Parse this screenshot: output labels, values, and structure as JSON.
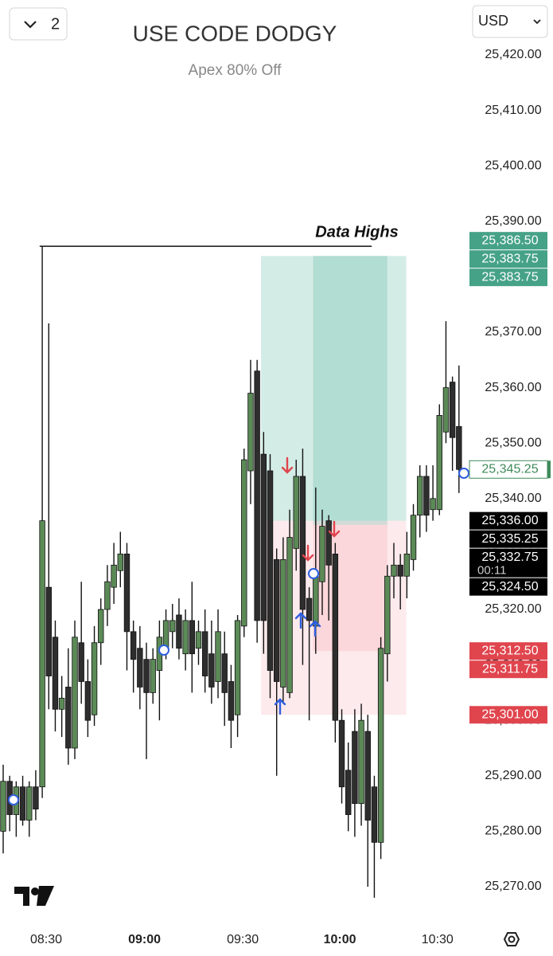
{
  "toolbar": {
    "interval_count": "2",
    "currency": "USD"
  },
  "chart_data": {
    "type": "candlestick",
    "title": "USE CODE DODGY",
    "subtitle": "Apex 80% Off",
    "up_color": "#5b8a57",
    "down_color": "#2e2e2e",
    "wick_color": "#111111",
    "ylim": [
      25265,
      25428
    ],
    "yticks": [
      {
        "value": 25270,
        "label": "25,270.00"
      },
      {
        "value": 25280,
        "label": "25,280.00"
      },
      {
        "value": 25290,
        "label": "25,290.00"
      },
      {
        "value": 25300,
        "label": "25,300.00"
      },
      {
        "value": 25310,
        "label": "25,310.00"
      },
      {
        "value": 25320,
        "label": "25,320.00"
      },
      {
        "value": 25330,
        "label": "25,330.00"
      },
      {
        "value": 25340,
        "label": "25,340.00"
      },
      {
        "value": 25350,
        "label": "25,350.00"
      },
      {
        "value": 25360,
        "label": "25,360.00"
      },
      {
        "value": 25370,
        "label": "25,370.00"
      },
      {
        "value": 25380,
        "label": "25,380.00"
      },
      {
        "value": 25390,
        "label": "25,390.00"
      },
      {
        "value": 25400,
        "label": "25,400.00"
      },
      {
        "value": 25410,
        "label": "25,410.00"
      },
      {
        "value": 25420,
        "label": "25,420.00"
      }
    ],
    "xlim": [
      -0.5,
      71.5
    ],
    "xticks": [
      {
        "value": 6.6,
        "label": "08:30"
      },
      {
        "value": 21.7,
        "label": "09:00",
        "bold": true
      },
      {
        "value": 36.8,
        "label": "09:30"
      },
      {
        "value": 51.7,
        "label": "10:00",
        "bold": true
      },
      {
        "value": 66.7,
        "label": "10:30"
      }
    ],
    "candles": [
      {
        "open": 25280,
        "high": 25292,
        "low": 25276,
        "close": 25289
      },
      {
        "open": 25289,
        "high": 25290,
        "low": 25280,
        "close": 25283
      },
      {
        "open": 25283,
        "high": 25289,
        "low": 25279,
        "close": 25288
      },
      {
        "open": 25288,
        "high": 25290,
        "low": 25281,
        "close": 25282
      },
      {
        "open": 25282,
        "high": 25289,
        "low": 25279,
        "close": 25288
      },
      {
        "open": 25288,
        "high": 25291,
        "low": 25282,
        "close": 25284
      },
      {
        "open": 25288,
        "high": 25385.5,
        "low": 25286,
        "close": 25336
      },
      {
        "open": 25324,
        "high": 25371.6,
        "low": 25302,
        "close": 25308
      },
      {
        "open": 25315,
        "high": 25318,
        "low": 25298,
        "close": 25302
      },
      {
        "open": 25302,
        "high": 25308,
        "low": 25297,
        "close": 25304
      },
      {
        "open": 25306,
        "high": 25313,
        "low": 25292,
        "close": 25295
      },
      {
        "open": 25295,
        "high": 25318,
        "low": 25293,
        "close": 25315
      },
      {
        "open": 25314,
        "high": 25325,
        "low": 25303,
        "close": 25307
      },
      {
        "open": 25307,
        "high": 25311,
        "low": 25297,
        "close": 25300
      },
      {
        "open": 25301,
        "high": 25317,
        "low": 25299,
        "close": 25314
      },
      {
        "open": 25314,
        "high": 25322,
        "low": 25310,
        "close": 25320
      },
      {
        "open": 25320,
        "high": 25328,
        "low": 25317,
        "close": 25325
      },
      {
        "open": 25324,
        "high": 25332,
        "low": 25321,
        "close": 25328
      },
      {
        "open": 25327,
        "high": 25334,
        "low": 25324,
        "close": 25330
      },
      {
        "open": 25330,
        "high": 25332,
        "low": 25309,
        "close": 25316
      },
      {
        "open": 25316,
        "high": 25318,
        "low": 25305,
        "close": 25311
      },
      {
        "open": 25313,
        "high": 25317,
        "low": 25302,
        "close": 25306
      },
      {
        "open": 25311,
        "high": 25314,
        "low": 25293,
        "close": 25305
      },
      {
        "open": 25305,
        "high": 25313,
        "low": 25303,
        "close": 25311
      },
      {
        "open": 25309,
        "high": 25318,
        "low": 25300,
        "close": 25315
      },
      {
        "open": 25313,
        "high": 25320,
        "low": 25311,
        "close": 25318
      },
      {
        "open": 25316,
        "high": 25321,
        "low": 25313,
        "close": 25318
      },
      {
        "open": 25319,
        "high": 25322,
        "low": 25311,
        "close": 25313
      },
      {
        "open": 25312,
        "high": 25320,
        "low": 25309,
        "close": 25318
      },
      {
        "open": 25318,
        "high": 25325,
        "low": 25305,
        "close": 25312
      },
      {
        "open": 25313,
        "high": 25318,
        "low": 25310,
        "close": 25316
      },
      {
        "open": 25316,
        "high": 25320,
        "low": 25305,
        "close": 25308
      },
      {
        "open": 25312,
        "high": 25318,
        "low": 25303,
        "close": 25306
      },
      {
        "open": 25307,
        "high": 25320,
        "low": 25304,
        "close": 25316
      },
      {
        "open": 25312,
        "high": 25316,
        "low": 25299,
        "close": 25305
      },
      {
        "open": 25307,
        "high": 25310,
        "low": 25295,
        "close": 25300
      },
      {
        "open": 25301,
        "high": 25319,
        "low": 25297,
        "close": 25318
      },
      {
        "open": 25317,
        "high": 25349,
        "low": 25315,
        "close": 25347
      },
      {
        "open": 25345,
        "high": 25365,
        "low": 25339,
        "close": 25359
      },
      {
        "open": 25363,
        "high": 25365,
        "low": 25314,
        "close": 25318
      },
      {
        "open": 25348,
        "high": 25352,
        "low": 25312,
        "close": 25318
      },
      {
        "open": 25345,
        "high": 25348,
        "low": 25304,
        "close": 25309
      },
      {
        "open": 25329,
        "high": 25331,
        "low": 25290,
        "close": 25307
      },
      {
        "open": 25306,
        "high": 25333,
        "low": 25303,
        "close": 25329
      },
      {
        "open": 25305,
        "high": 25338,
        "low": 25304,
        "close": 25333
      },
      {
        "open": 25331,
        "high": 25347,
        "low": 25327,
        "close": 25344
      },
      {
        "open": 25344,
        "high": 25349,
        "low": 25310,
        "close": 25320
      },
      {
        "open": 25322,
        "high": 25324,
        "low": 25300,
        "close": 25318
      },
      {
        "open": 25317,
        "high": 25342,
        "low": 25312,
        "close": 25326
      },
      {
        "open": 25325,
        "high": 25338,
        "low": 25319,
        "close": 25335
      },
      {
        "open": 25336,
        "high": 25337,
        "low": 25318,
        "close": 25328
      },
      {
        "open": 25330,
        "high": 25332,
        "low": 25296,
        "close": 25300
      },
      {
        "open": 25300,
        "high": 25302,
        "low": 25285,
        "close": 25288
      },
      {
        "open": 25291,
        "high": 25296,
        "low": 25280,
        "close": 25283
      },
      {
        "open": 25298,
        "high": 25302,
        "low": 25279,
        "close": 25285
      },
      {
        "open": 25285,
        "high": 25303,
        "low": 25281,
        "close": 25300
      },
      {
        "open": 25298,
        "high": 25301,
        "low": 25270,
        "close": 25282
      },
      {
        "open": 25288,
        "high": 25290,
        "low": 25268,
        "close": 25278
      },
      {
        "open": 25278,
        "high": 25315,
        "low": 25275,
        "close": 25313
      },
      {
        "open": 25312,
        "high": 25328,
        "low": 25307,
        "close": 25326
      },
      {
        "open": 25326,
        "high": 25332,
        "low": 25322,
        "close": 25328
      },
      {
        "open": 25328,
        "high": 25330,
        "low": 25320,
        "close": 25326
      },
      {
        "open": 25326,
        "high": 25334,
        "low": 25322,
        "close": 25330
      },
      {
        "open": 25329,
        "high": 25339,
        "low": 25327,
        "close": 25337
      },
      {
        "open": 25337,
        "high": 25346,
        "low": 25333,
        "close": 25344
      },
      {
        "open": 25344,
        "high": 25346,
        "low": 25334,
        "close": 25337
      },
      {
        "open": 25338,
        "high": 25346,
        "low": 25336,
        "close": 25340
      },
      {
        "open": 25338,
        "high": 25357,
        "low": 25337,
        "close": 25355
      },
      {
        "open": 25352,
        "high": 25372,
        "low": 25350,
        "close": 25360
      },
      {
        "open": 25361,
        "high": 25362,
        "low": 25345,
        "close": 25351
      },
      {
        "open": 25353,
        "high": 25364,
        "low": 25341,
        "close": 25345.25
      }
    ],
    "annotation": {
      "text": "Data Highs",
      "value": 25385.5,
      "start": 5.6,
      "end": 56.6
    },
    "positions": [
      {
        "start": 39.6,
        "end": 61.9,
        "target": 25383.75,
        "entry": 25336,
        "stop": 25301
      },
      {
        "start": 47.6,
        "end": 59,
        "target": 25383.75,
        "entry": 25335.25,
        "stop": 25312.5
      }
    ],
    "price_badges": [
      {
        "value": 25386.5,
        "label": "25,386.50",
        "style": "green"
      },
      {
        "value": 25383.75,
        "label": "25,383.75",
        "style": "green"
      },
      {
        "value": 25383.75,
        "label": "25,383.75",
        "style": "green"
      },
      {
        "value": 25345.25,
        "label": "25,345.25",
        "style": "outline"
      },
      {
        "value": 25336,
        "label": "25,336.00",
        "style": "black"
      },
      {
        "value": 25335.25,
        "label": "25,335.25",
        "style": "black"
      },
      {
        "value": 25332.75,
        "label": "25,332.75",
        "style": "black",
        "timer": "00:11"
      },
      {
        "value": 25324.5,
        "label": "25,324.50",
        "style": "black"
      },
      {
        "value": 25312.5,
        "label": "25,312.50",
        "style": "red"
      },
      {
        "value": 25311.75,
        "label": "25,311.75",
        "style": "red"
      },
      {
        "value": 25301,
        "label": "25,301.00",
        "style": "red"
      }
    ]
  }
}
